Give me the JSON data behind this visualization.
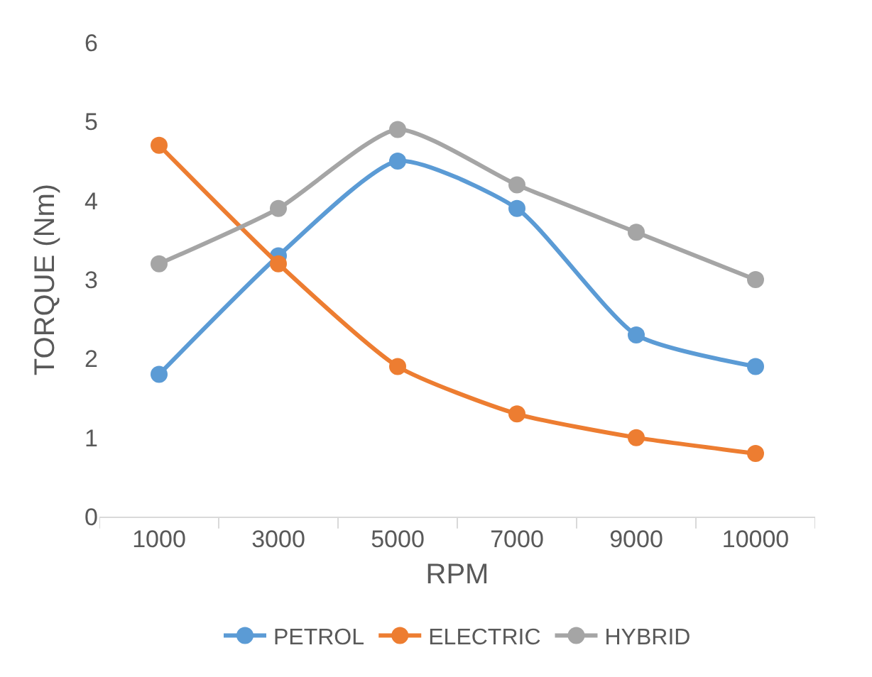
{
  "chart_data": {
    "type": "line",
    "xlabel": "RPM",
    "ylabel": "TORQUE (Nm)",
    "categories": [
      "1000",
      "3000",
      "5000",
      "7000",
      "9000",
      "10000"
    ],
    "series": [
      {
        "name": "PETROL",
        "color": "#5b9bd5",
        "values": [
          1.8,
          3.3,
          4.5,
          3.9,
          2.3,
          1.9
        ]
      },
      {
        "name": "ELECTRIC",
        "color": "#ed7d31",
        "values": [
          4.7,
          3.2,
          1.9,
          1.3,
          1.0,
          0.8
        ]
      },
      {
        "name": "HYBRID",
        "color": "#a5a5a5",
        "values": [
          3.2,
          3.9,
          4.9,
          4.2,
          3.6,
          3.0
        ]
      }
    ],
    "ylim": [
      0,
      6
    ],
    "yticks": [
      0,
      1,
      2,
      3,
      4,
      5,
      6
    ],
    "grid": false,
    "legend": "bottom",
    "marker": "circle",
    "line_style": "solid"
  }
}
